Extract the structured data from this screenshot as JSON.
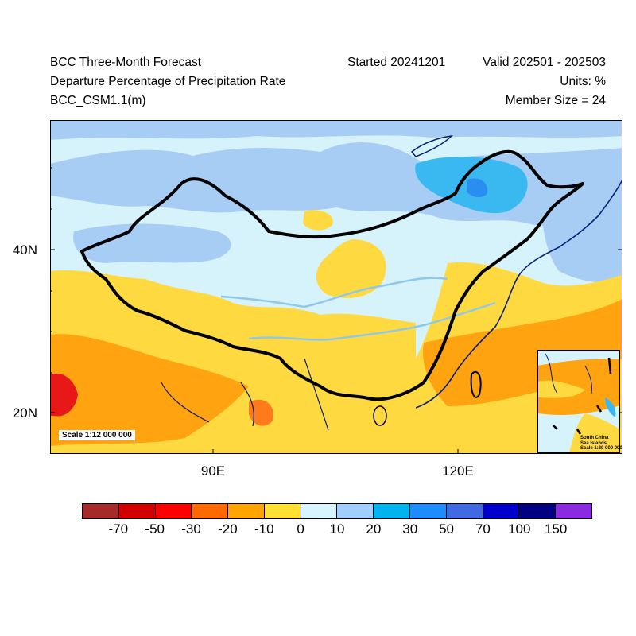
{
  "header": {
    "title_line1": "BCC Three-Month Forecast",
    "title_line2": "Departure Percentage of Precipitation Rate",
    "title_line3": "BCC_CSM1.1(m)",
    "started": "Started 20241201",
    "valid": "Valid 202501 - 202503",
    "units": "Units: %",
    "member_size": "Member Size = 24"
  },
  "axes": {
    "lat_labels": [
      "40N",
      "20N"
    ],
    "lon_labels": [
      "90E",
      "120E"
    ]
  },
  "scale_label": "Scale 1:12 000 000",
  "inset": {
    "line1": "South China",
    "line2": "Sea Islands",
    "line3": "Scale 1:20 000 000"
  },
  "colorbar": {
    "colors": [
      "#a52a2a",
      "#d20000",
      "#ff0000",
      "#ff6a00",
      "#ffa500",
      "#ffe033",
      "#d8f5ff",
      "#a0cfff",
      "#00b4f0",
      "#1e8cff",
      "#4169e1",
      "#0000cd",
      "#000080",
      "#8a2be2"
    ],
    "labels": [
      "-70",
      "-50",
      "-30",
      "-20",
      "-10",
      "0",
      "10",
      "20",
      "30",
      "50",
      "70",
      "100",
      "150"
    ]
  },
  "palette": {
    "light_blue_bg": "#d6f3fb",
    "blue_10": "#a8cdf5",
    "blue_20": "#3ab8f0",
    "blue_30": "#2a8ef0",
    "yellow": "#ffd940",
    "orange": "#ffa310",
    "dark_orange": "#ff7a1a",
    "red": "#e81818",
    "border": "#000000",
    "coast": "#0a1f7a",
    "river": "#8fc8e8"
  }
}
